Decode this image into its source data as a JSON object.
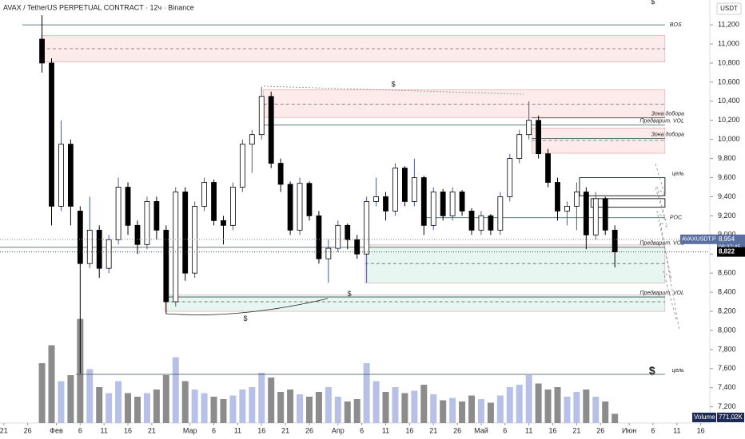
{
  "chart_data": {
    "type": "candlestick",
    "title": "AVAX / TetherUS PERPETUAL CONTRACT · 12ч · Binance",
    "currency": "USDT",
    "x": [
      8,
      10,
      12,
      14,
      16,
      18,
      20,
      22,
      24,
      26,
      28,
      30,
      32,
      34,
      36,
      38,
      40,
      42,
      44,
      46,
      48,
      50,
      52,
      54,
      56,
      58,
      60,
      62,
      64,
      66,
      68,
      70,
      72,
      74,
      76,
      78,
      80,
      82,
      84,
      86,
      88,
      90,
      92,
      94,
      96,
      98,
      100,
      102,
      104,
      106,
      108,
      110,
      112,
      114,
      116,
      118,
      120,
      122,
      124,
      126,
      128
    ],
    "open": [
      11050,
      10800,
      9300,
      9950,
      9250,
      8700,
      9050,
      8650,
      8950,
      9500,
      9100,
      8900,
      9350,
      9050,
      8300,
      9450,
      8600,
      9300,
      9550,
      9150,
      9100,
      9500,
      9950,
      10050,
      10450,
      9750,
      9530,
      9050,
      9540,
      9200,
      8750,
      8860,
      9100,
      8950,
      8800,
      9350,
      9400,
      9250,
      9700,
      9350,
      9600,
      9100,
      9450,
      9200,
      9450,
      9250,
      9050,
      9200,
      9050,
      9400,
      9800,
      10050,
      10200,
      9850,
      9550,
      9250,
      9300,
      9450,
      9000,
      9380,
      9050
    ],
    "high": [
      11300,
      10850,
      10200,
      10000,
      9300,
      9400,
      9100,
      9000,
      9600,
      9550,
      9150,
      9400,
      9400,
      9100,
      9500,
      9500,
      9350,
      9600,
      9580,
      9200,
      9550,
      10000,
      10100,
      10550,
      10500,
      9800,
      9560,
      9600,
      9560,
      9250,
      8950,
      9150,
      9120,
      9000,
      9400,
      9600,
      9450,
      9750,
      9720,
      9800,
      9620,
      9500,
      9480,
      9500,
      9470,
      9280,
      9250,
      9220,
      9450,
      9850,
      10100,
      10400,
      10250,
      9900,
      9600,
      9350,
      9550,
      9500,
      9450,
      9400,
      9100
    ],
    "low": [
      10700,
      9100,
      9250,
      9100,
      7550,
      8650,
      8550,
      8600,
      8900,
      9000,
      8800,
      8850,
      8950,
      8180,
      8250,
      8520,
      8550,
      9250,
      9100,
      8900,
      9050,
      9450,
      9650,
      10000,
      9700,
      9450,
      9000,
      9000,
      9150,
      8700,
      8500,
      8820,
      8850,
      8750,
      8500,
      9300,
      9150,
      9200,
      9300,
      9300,
      9000,
      9050,
      9150,
      9150,
      9200,
      9000,
      9000,
      9000,
      9000,
      9350,
      9750,
      10000,
      9800,
      9500,
      9150,
      9100,
      9050,
      8850,
      8950,
      9000,
      8660
    ],
    "close": [
      10800,
      9300,
      9950,
      9300,
      8700,
      9050,
      8650,
      8950,
      9500,
      9100,
      8900,
      9350,
      9050,
      8300,
      9450,
      8600,
      9300,
      9550,
      9150,
      9100,
      9500,
      9950,
      10050,
      10450,
      9750,
      9530,
      9050,
      9540,
      9200,
      8750,
      8860,
      9100,
      8950,
      8800,
      9350,
      9400,
      9250,
      9700,
      9350,
      9600,
      9100,
      9450,
      9200,
      9450,
      9250,
      9050,
      9200,
      9050,
      9400,
      9800,
      10050,
      10200,
      9850,
      9550,
      9250,
      9300,
      9450,
      9000,
      9380,
      9050,
      8822
    ],
    "volume": [
      5000,
      6500,
      3500,
      4000,
      8700,
      4500,
      3000,
      2500,
      3500,
      2500,
      2200,
      2500,
      2800,
      4000,
      5500,
      3500,
      2800,
      2500,
      2200,
      2000,
      2300,
      2800,
      3000,
      4200,
      3800,
      2600,
      2800,
      2400,
      2200,
      2600,
      3000,
      2200,
      1800,
      2000,
      5000,
      3500,
      2600,
      3000,
      2500,
      2700,
      3200,
      2400,
      1900,
      2100,
      1800,
      2300,
      2000,
      1700,
      2300,
      3000,
      3200,
      4000,
      3300,
      2800,
      3000,
      2200,
      2600,
      2800,
      2200,
      1800,
      771.02
    ],
    "volume_title": "Volume",
    "volume_last": {
      "value": 771.02,
      "label": "771,02K"
    },
    "volume_ylim": [
      0,
      12000
    ],
    "xlim": [
      -0.8,
      147.9
    ],
    "ylim": [
      7030,
      11460
    ],
    "xticks": [
      {
        "value": 0,
        "label": "21"
      },
      {
        "value": 5,
        "label": "26"
      },
      {
        "value": 11,
        "label": "Фев"
      },
      {
        "value": 16,
        "label": "6"
      },
      {
        "value": 21,
        "label": "11"
      },
      {
        "value": 26,
        "label": "16"
      },
      {
        "value": 31,
        "label": "21"
      },
      {
        "value": 39,
        "label": "Мар"
      },
      {
        "value": 44,
        "label": "6"
      },
      {
        "value": 49,
        "label": "11"
      },
      {
        "value": 54,
        "label": "16"
      },
      {
        "value": 59,
        "label": "21"
      },
      {
        "value": 64,
        "label": "26"
      },
      {
        "value": 70,
        "label": "Апр"
      },
      {
        "value": 75,
        "label": "6"
      },
      {
        "value": 80,
        "label": "11"
      },
      {
        "value": 85,
        "label": "16"
      },
      {
        "value": 90,
        "label": "21"
      },
      {
        "value": 95,
        "label": "26"
      },
      {
        "value": 100,
        "label": "Май"
      },
      {
        "value": 105,
        "label": "6"
      },
      {
        "value": 110,
        "label": "11"
      },
      {
        "value": 115,
        "label": "16"
      },
      {
        "value": 120,
        "label": "21"
      },
      {
        "value": 125,
        "label": "26"
      },
      {
        "value": 131,
        "label": "Июн"
      },
      {
        "value": 136,
        "label": "6"
      },
      {
        "value": 141,
        "label": "11"
      },
      {
        "value": 146,
        "label": "16"
      }
    ],
    "yticks": [
      {
        "value": 11200,
        "label": "11,200"
      },
      {
        "value": 11000,
        "label": "11,000"
      },
      {
        "value": 10800,
        "label": "10,800"
      },
      {
        "value": 10600,
        "label": "10,600"
      },
      {
        "value": 10400,
        "label": "10,400"
      },
      {
        "value": 10200,
        "label": "10,200"
      },
      {
        "value": 10000,
        "label": "10,000"
      },
      {
        "value": 9800,
        "label": "9,800"
      },
      {
        "value": 9600,
        "label": "9,600"
      },
      {
        "value": 9400,
        "label": "9,400"
      },
      {
        "value": 9200,
        "label": "9,200"
      },
      {
        "value": 9000,
        "label": "9,000"
      },
      {
        "value": 8800,
        "label": "8,800"
      },
      {
        "value": 8600,
        "label": "8,600"
      },
      {
        "value": 8400,
        "label": "8,400"
      },
      {
        "value": 8200,
        "label": "8,200"
      },
      {
        "value": 8000,
        "label": "8,000"
      },
      {
        "value": 7800,
        "label": "7,800"
      },
      {
        "value": 7600,
        "label": "7,600"
      },
      {
        "value": 7400,
        "label": "7,400"
      },
      {
        "value": 7200,
        "label": "7,200"
      }
    ],
    "up_color": "#ffffff",
    "down_color": "#000000",
    "wick_color": "#4a5a9a",
    "volume_up_color": "#b7c0e6",
    "volume_down_color": "#8c8c8c",
    "zones": [
      {
        "top": 11090,
        "bottom": 10810,
        "mid": 10950,
        "x_start": 7.9,
        "x_end": 138.5,
        "color": "#fdeaea"
      },
      {
        "top": 10520,
        "bottom": 10230,
        "mid": 10370,
        "x_start": 54.4,
        "x_end": 138.5,
        "color": "#fdeaea"
      },
      {
        "top": 10120,
        "bottom": 9855,
        "mid": 9990,
        "x_start": 110.6,
        "x_end": 138.5,
        "color": "#fdeaea"
      },
      {
        "top": 8895,
        "bottom": 8495,
        "mid": 8700,
        "x_start": 75.7,
        "x_end": 138.5,
        "color": "#e8f6f1"
      },
      {
        "top": 8370,
        "bottom": 8200,
        "mid": 8300,
        "x_start": 33.8,
        "x_end": 138.5,
        "color": "#e8f6f1"
      },
      {
        "top": 9600,
        "bottom": 9410,
        "x_start": 120.6,
        "x_end": 138.5,
        "color": "none"
      },
      {
        "top": 9380,
        "bottom": 9290,
        "x_start": 123,
        "x_end": 138.5,
        "color": "none"
      }
    ],
    "levels": [
      {
        "label": "BOS",
        "value": 11200,
        "x_start": 3.9,
        "x_end": 138.5,
        "label_pos": "after"
      },
      {
        "label": "Зона добора",
        "value": 10225,
        "x_start": 110.6,
        "x_end": 138.5,
        "label_pos": "above"
      },
      {
        "label": "Предварит. VOL",
        "value": 10150,
        "x_start": 54.4,
        "x_end": 138.5,
        "label_pos": "above"
      },
      {
        "label": "Зона добора",
        "value": 10010,
        "x_start": 110.6,
        "x_end": 138.5,
        "label_pos": "above"
      },
      {
        "label": "цель",
        "value": 9600,
        "x_start": 120.6,
        "x_end": 138.5,
        "label_pos": "above"
      },
      {
        "label": "POC",
        "value": 9180,
        "x_start": 88,
        "x_end": 138.5,
        "label_pos": "after"
      },
      {
        "label": "Предварит. VOL",
        "value": 8870,
        "x_start": -0.8,
        "x_end": 138.5,
        "label_pos": "above"
      },
      {
        "label": "Предварит. VOL",
        "value": 8350,
        "x_start": 34.3,
        "x_end": 138.5,
        "label_pos": "above"
      },
      {
        "label": "цель",
        "value": 7540,
        "x_start": 15.1,
        "x_end": 138.5,
        "label_pos": "above"
      }
    ],
    "annotations": [
      {
        "text": "$",
        "x": 81.6,
        "y": 10575,
        "large": false
      },
      {
        "text": "$",
        "x": 72.4,
        "y": 8380,
        "large": false
      },
      {
        "text": "$",
        "x": 50.6,
        "y": 8120,
        "large": false
      },
      {
        "text": "$",
        "x": 135.8,
        "y": 7570,
        "large": true
      },
      {
        "text": "$",
        "x": 136,
        "y": 11440,
        "large": false
      }
    ],
    "price_tag": {
      "symbol": "AVAXUSDT.P",
      "value": 8954,
      "label": "8,954",
      "countdown": "08:37:45"
    },
    "last_price": {
      "value": 8822,
      "label": "8,822"
    }
  }
}
